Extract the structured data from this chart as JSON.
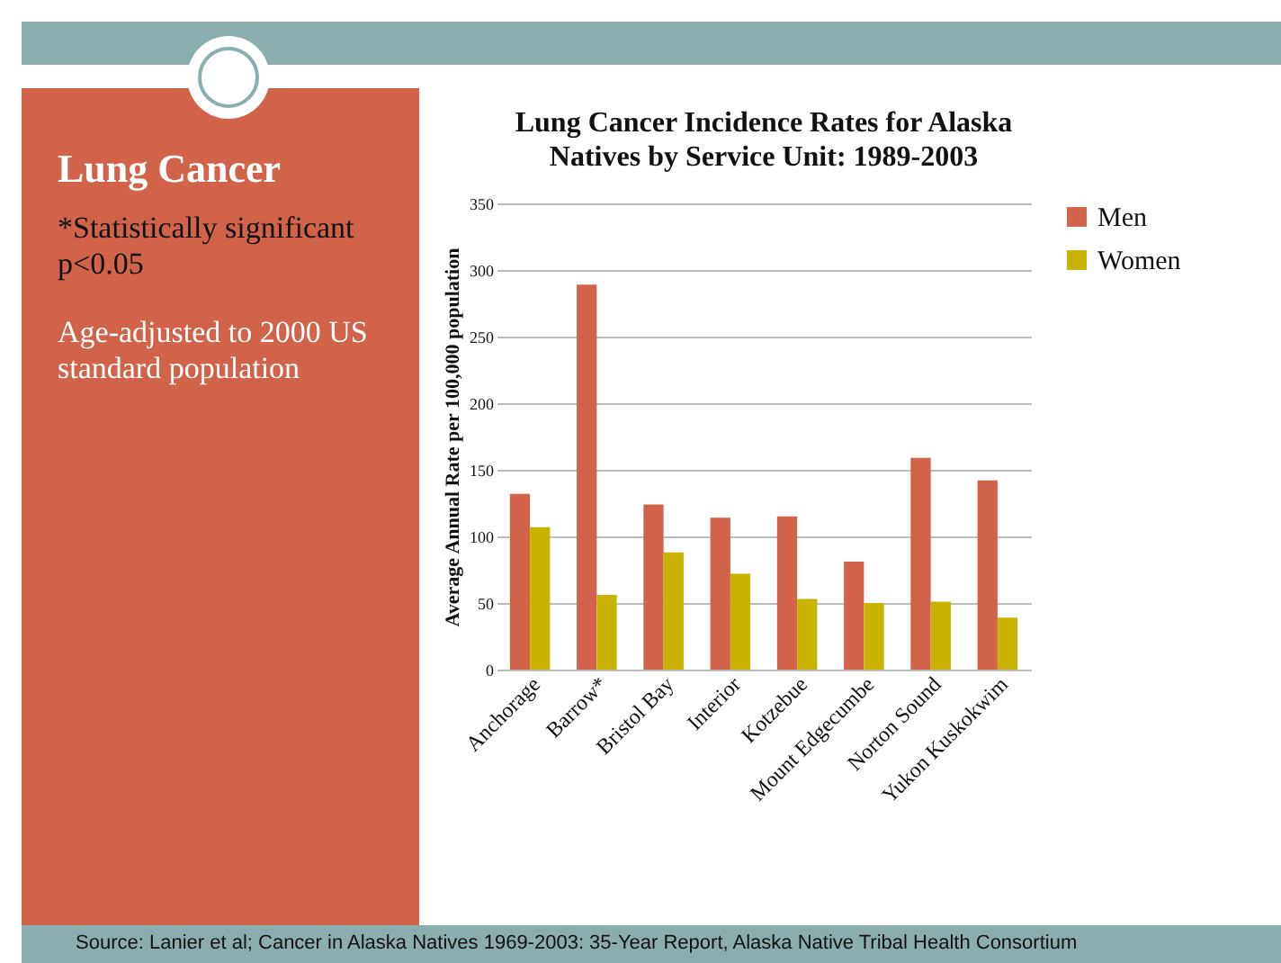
{
  "chart_data": {
    "type": "bar",
    "title": "Lung Cancer Incidence Rates for Alaska Natives by Service Unit: 1989-2003",
    "ylabel": "Average Annual Rate per 100,000 population",
    "categories": [
      "Anchorage",
      "Barrow*",
      "Bristol Bay",
      "Interior",
      "Kotzebue",
      "Mount Edgecumbe",
      "Norton Sound",
      "Yukon Kuskokwim"
    ],
    "series": [
      {
        "name": "Men",
        "color": "#d0634a",
        "values": [
          132,
          289,
          124,
          114,
          115,
          81,
          159,
          142
        ]
      },
      {
        "name": "Women",
        "color": "#c9b200",
        "values": [
          107,
          56,
          88,
          72,
          53,
          50,
          51,
          39
        ]
      }
    ],
    "ylim": [
      0,
      350
    ],
    "yticks": [
      0,
      50,
      100,
      150,
      200,
      250,
      300,
      350
    ],
    "grid": "y",
    "legend": "right",
    "annotations": [
      "Lung Cancer",
      "*Statistically significant p<0.05",
      "Age-adjusted to 2000 US standard population",
      "Source:  Lanier et al; Cancer in Alaska Natives 1969-2003:  35-Year Report, Alaska Native Tribal Health Consortium"
    ]
  }
}
